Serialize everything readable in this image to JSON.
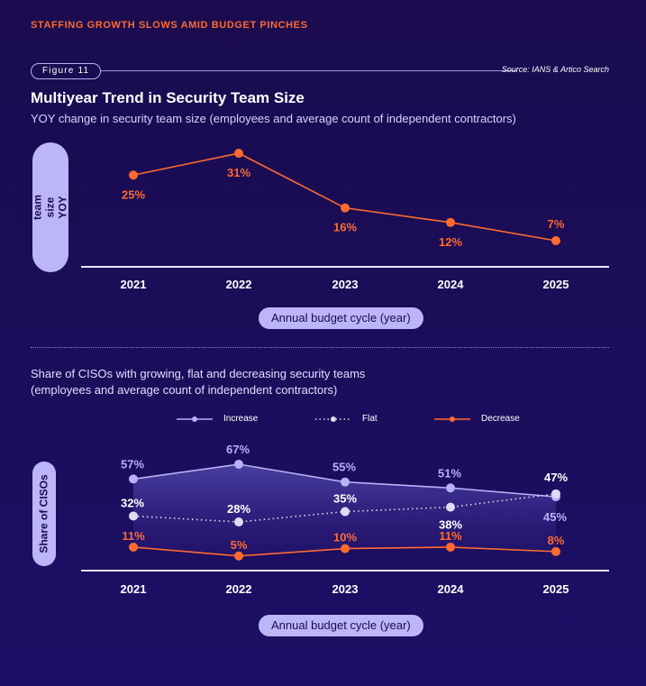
{
  "kicker": "STAFFING GROWTH SLOWS AMID BUDGET PINCHES",
  "figure_label": "Figure 11",
  "source": "Source: IANS & Artico Search",
  "colors": {
    "orange": "#ff6a2f",
    "lavender": "#b8b1f5",
    "white": "#ffffff",
    "flat": "#dcdcf2"
  },
  "chart_data": [
    {
      "type": "line",
      "title": "Multiyear Trend in Security Team Size",
      "subtitle": "YOY change in security team size (employees and average count of independent contractors)",
      "ylabel": "Security team size\nYOY change",
      "xlabel": "Annual budget cycle (year)",
      "categories": [
        "2021",
        "2022",
        "2023",
        "2024",
        "2025"
      ],
      "series": [
        {
          "name": "YOY change",
          "values": [
            25,
            31,
            16,
            12,
            7
          ],
          "labels": [
            "25%",
            "31%",
            "16%",
            "12%",
            "7%"
          ]
        }
      ],
      "ylim": [
        0,
        35
      ],
      "grid": false
    },
    {
      "type": "line",
      "title": "Share of CISOs with growing, flat and decreasing security teams\n(employees and average count of independent contractors)",
      "ylabel": "Share of CISOs",
      "xlabel": "Annual budget cycle (year)",
      "categories": [
        "2021",
        "2022",
        "2023",
        "2024",
        "2025"
      ],
      "legend": "top",
      "series": [
        {
          "name": "Increase",
          "values": [
            57,
            67,
            55,
            51,
            45
          ],
          "labels": [
            "57%",
            "67%",
            "55%",
            "51%",
            "45%"
          ]
        },
        {
          "name": "Flat",
          "values": [
            32,
            28,
            35,
            38,
            47
          ],
          "labels": [
            "32%",
            "28%",
            "35%",
            "38%",
            "47%"
          ]
        },
        {
          "name": "Decrease",
          "values": [
            11,
            5,
            10,
            11,
            8
          ],
          "labels": [
            "11%",
            "5%",
            "10%",
            "11%",
            "8%"
          ]
        }
      ],
      "ylim": [
        0,
        75
      ],
      "grid": false
    }
  ]
}
